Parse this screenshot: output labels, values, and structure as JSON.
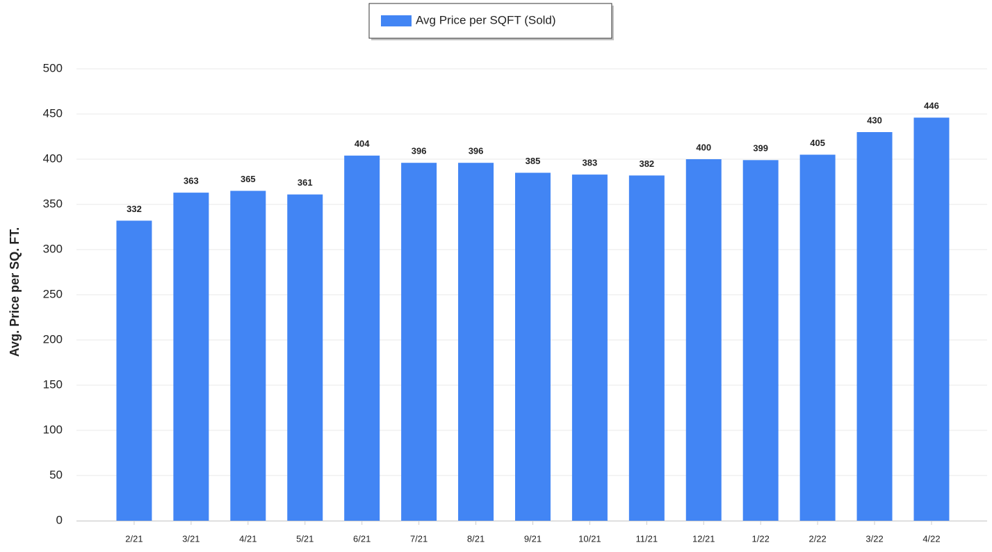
{
  "chart_data": {
    "type": "bar",
    "y_label": "Avg. Price per SQ. FT.",
    "categories": [
      "2/21",
      "3/21",
      "4/21",
      "5/21",
      "6/21",
      "7/21",
      "8/21",
      "9/21",
      "10/21",
      "11/21",
      "12/21",
      "1/22",
      "2/22",
      "3/22",
      "4/22"
    ],
    "series": [
      {
        "name": "Avg Price per SQFT (Sold)",
        "color": "#4285f4",
        "values": [
          332,
          363,
          365,
          361,
          404,
          396,
          396,
          385,
          383,
          382,
          400,
          399,
          405,
          430,
          446
        ]
      }
    ],
    "ylim": [
      0,
      500
    ],
    "yticks": [
      0,
      50,
      100,
      150,
      200,
      250,
      300,
      350,
      400,
      450,
      500
    ],
    "grid": true
  }
}
